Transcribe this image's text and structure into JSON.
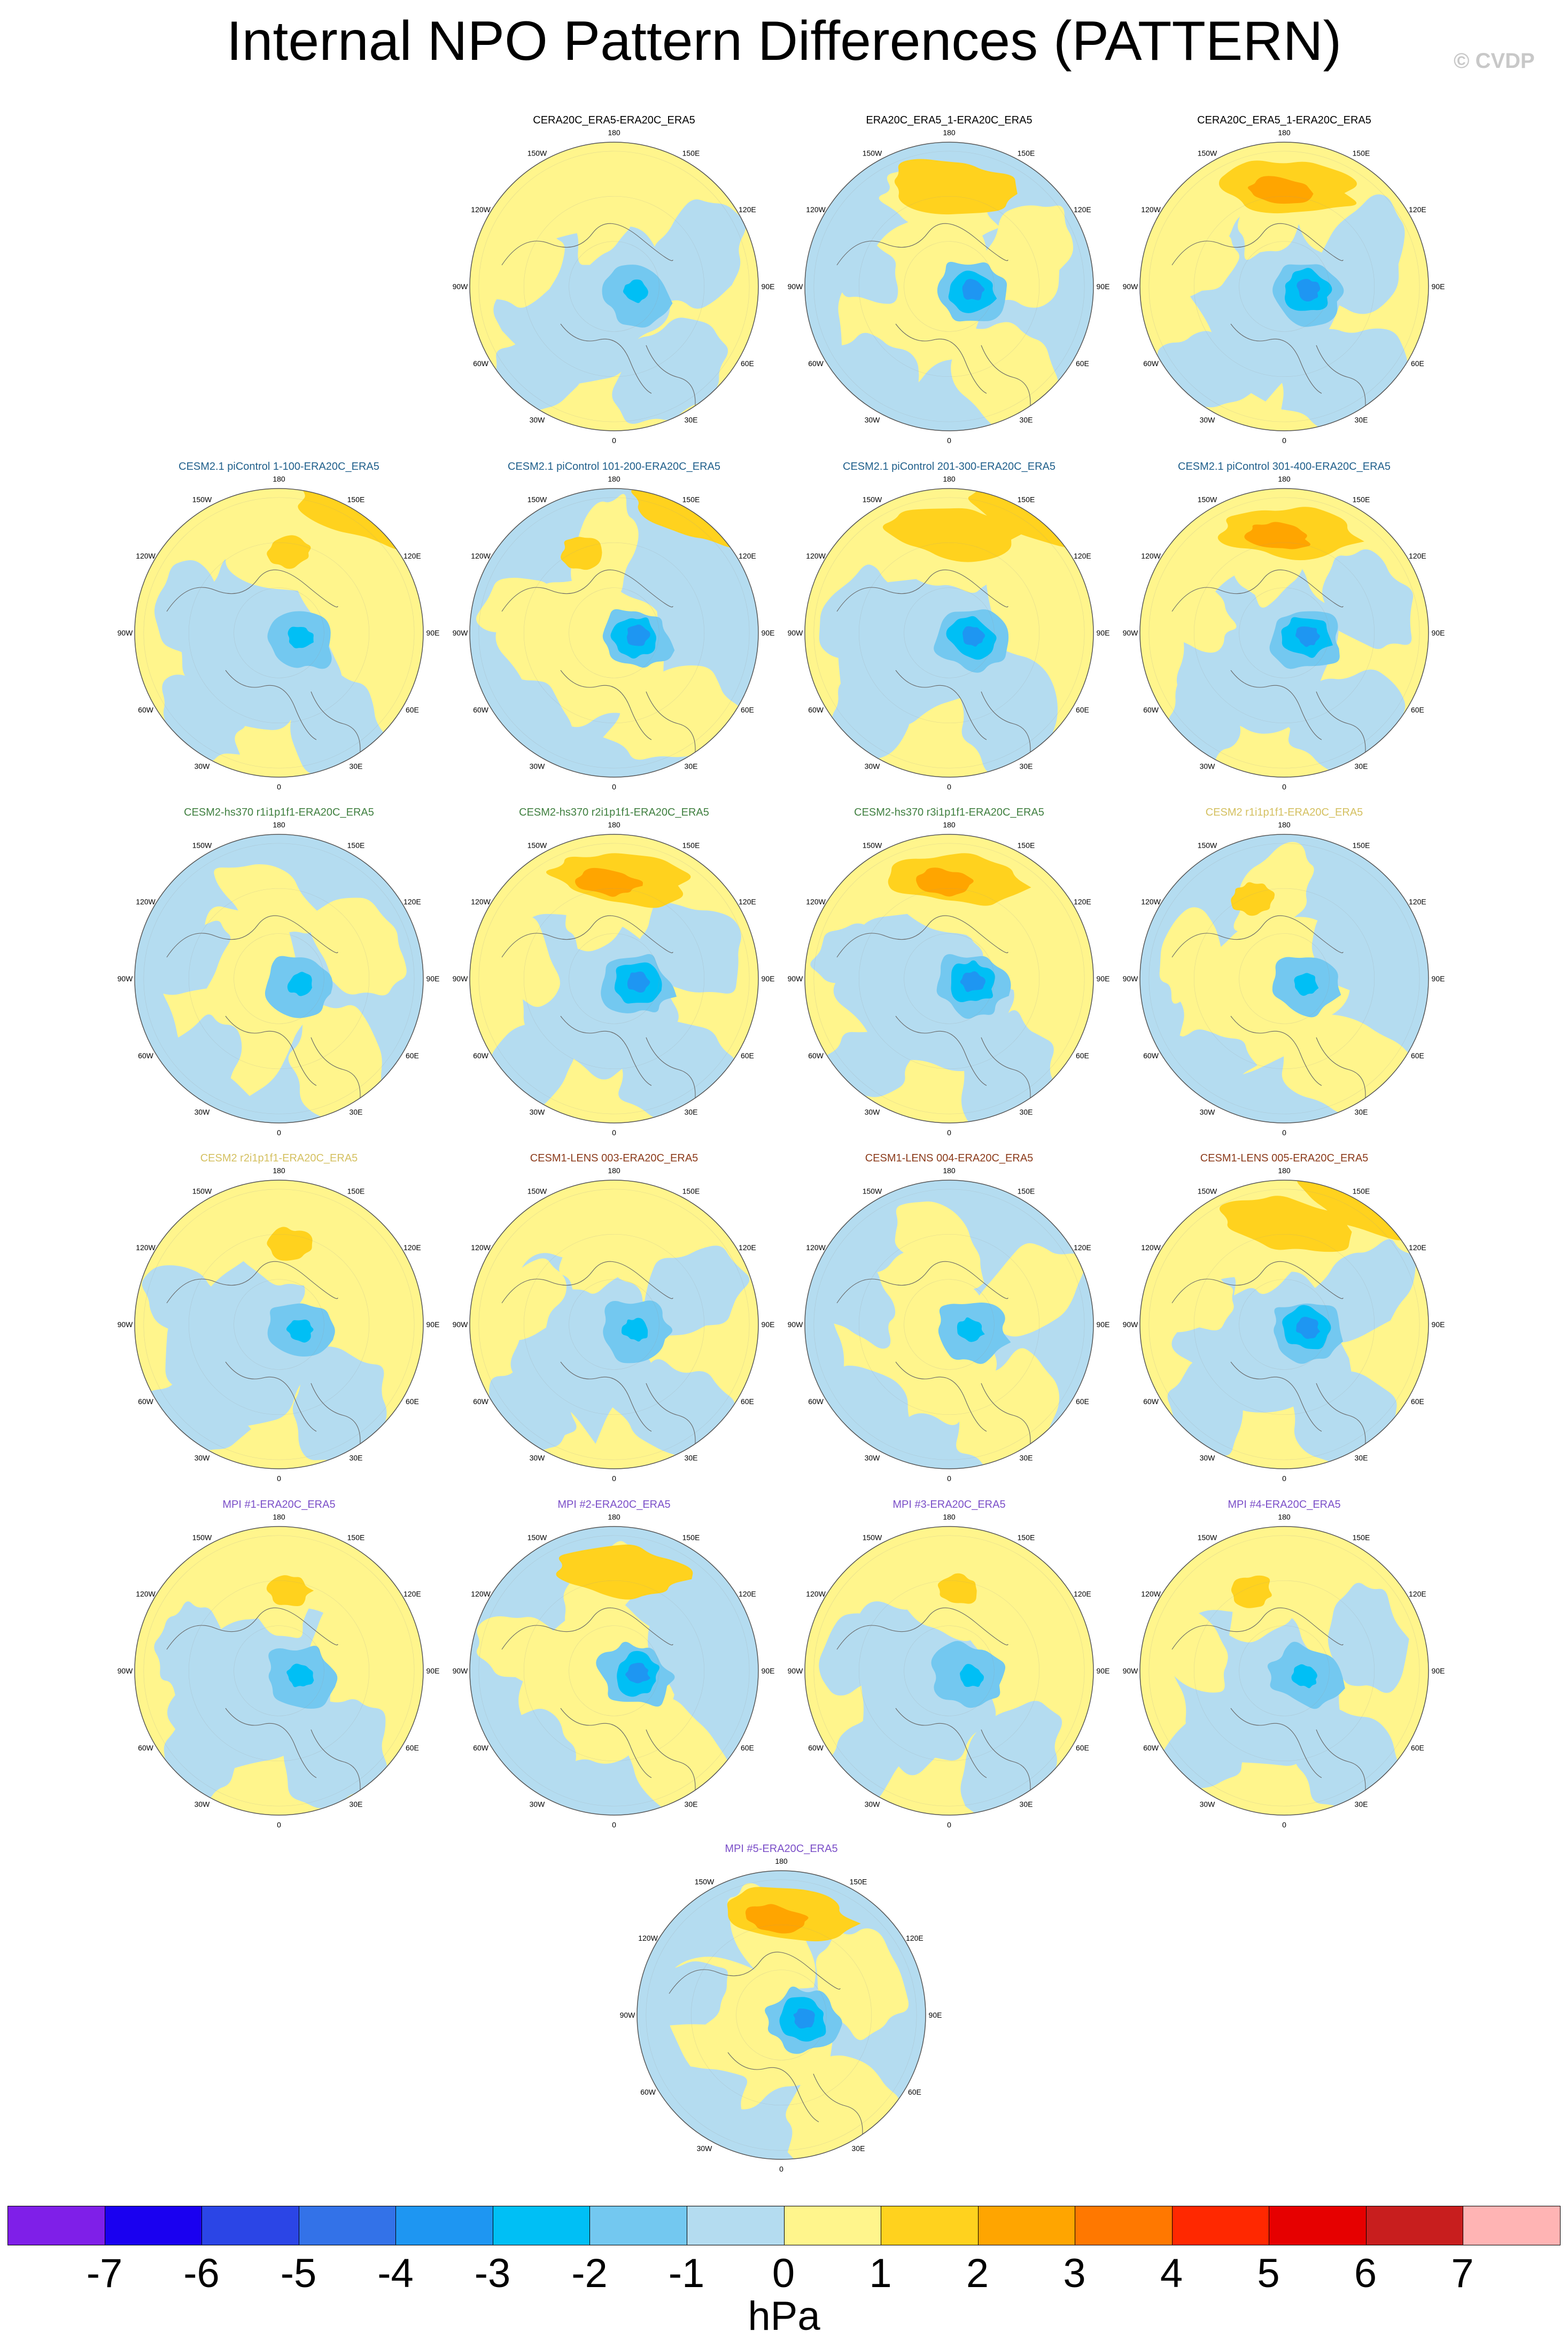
{
  "title": "Internal NPO Pattern Differences (PATTERN)",
  "watermark": "© CVDP",
  "panels": [
    {
      "label": "CERA20C_ERA5-ERA20C_ERA5",
      "color": "#000000",
      "variant": 0
    },
    {
      "label": "ERA20C_ERA5_1-ERA20C_ERA5",
      "color": "#000000",
      "variant": 1
    },
    {
      "label": "CERA20C_ERA5_1-ERA20C_ERA5",
      "color": "#000000",
      "variant": 2
    },
    {
      "label": "CESM2.1 piControl 1-100-ERA20C_ERA5",
      "color": "#1f5f8b",
      "variant": 3
    },
    {
      "label": "CESM2.1 piControl 101-200-ERA20C_ERA5",
      "color": "#1f5f8b",
      "variant": 4
    },
    {
      "label": "CESM2.1 piControl 201-300-ERA20C_ERA5",
      "color": "#1f5f8b",
      "variant": 5
    },
    {
      "label": "CESM2.1 piControl 301-400-ERA20C_ERA5",
      "color": "#1f5f8b",
      "variant": 6
    },
    {
      "label": "CESM2-hs370 r1i1p1f1-ERA20C_ERA5",
      "color": "#3f7f3f",
      "variant": 7
    },
    {
      "label": "CESM2-hs370 r2i1p1f1-ERA20C_ERA5",
      "color": "#3f7f3f",
      "variant": 8
    },
    {
      "label": "CESM2-hs370 r3i1p1f1-ERA20C_ERA5",
      "color": "#3f7f3f",
      "variant": 9
    },
    {
      "label": "CESM2 r1i1p1f1-ERA20C_ERA5",
      "color": "#d4c060",
      "variant": 10
    },
    {
      "label": "CESM2 r2i1p1f1-ERA20C_ERA5",
      "color": "#d4c060",
      "variant": 11
    },
    {
      "label": "CESM1-LENS 003-ERA20C_ERA5",
      "color": "#8b3a1a",
      "variant": 12
    },
    {
      "label": "CESM1-LENS 004-ERA20C_ERA5",
      "color": "#8b3a1a",
      "variant": 13
    },
    {
      "label": "CESM1-LENS 005-ERA20C_ERA5",
      "color": "#8b3a1a",
      "variant": 14
    },
    {
      "label": "MPI #1-ERA20C_ERA5",
      "color": "#7b4fc8",
      "variant": 15
    },
    {
      "label": "MPI #2-ERA20C_ERA5",
      "color": "#7b4fc8",
      "variant": 16
    },
    {
      "label": "MPI #3-ERA20C_ERA5",
      "color": "#7b4fc8",
      "variant": 17
    },
    {
      "label": "MPI #4-ERA20C_ERA5",
      "color": "#7b4fc8",
      "variant": 18
    },
    {
      "label": "MPI #5-ERA20C_ERA5",
      "color": "#7b4fc8",
      "variant": 19
    }
  ],
  "longitude_labels": [
    "180",
    "150E",
    "120E",
    "90E",
    "60E",
    "30E",
    "0",
    "30W",
    "60W",
    "90W",
    "120W",
    "150W"
  ],
  "colorbar": {
    "units": "hPa",
    "ticks": [
      "-7",
      "-6",
      "-5",
      "-4",
      "-3",
      "-2",
      "-1",
      "0",
      "1",
      "2",
      "3",
      "4",
      "5",
      "6",
      "7"
    ],
    "colors": [
      "#7f1fe8",
      "#1a00f0",
      "#2b45e6",
      "#3372e8",
      "#1e96f2",
      "#00bff5",
      "#73c8f0",
      "#b4dcf0",
      "#fff58c",
      "#ffd21e",
      "#ffa500",
      "#ff7800",
      "#ff2800",
      "#e60000",
      "#c81e1e",
      "#ffb4b4"
    ]
  }
}
